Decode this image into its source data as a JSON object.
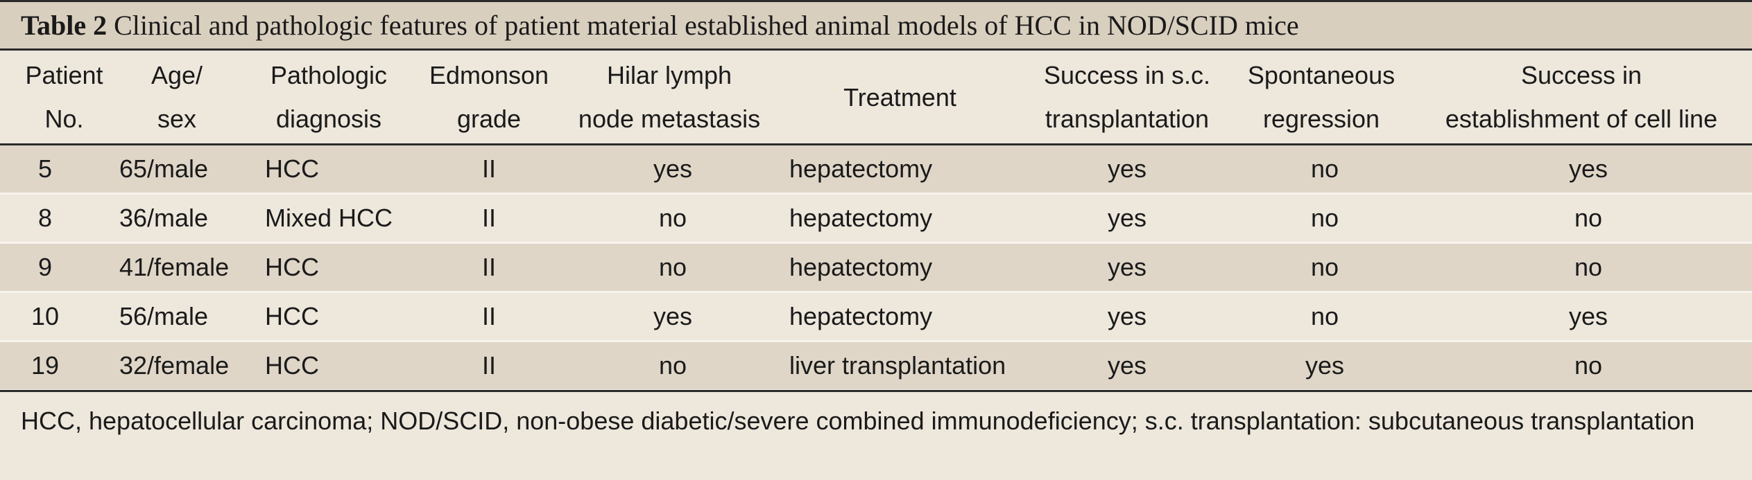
{
  "table": {
    "caption_label": "Table 2",
    "caption_text": " Clinical and pathologic features of patient material established animal models of HCC in NOD/SCID mice",
    "headers": [
      [
        "Patient",
        "No."
      ],
      [
        "Age/",
        "sex"
      ],
      [
        "Pathologic",
        "diagnosis"
      ],
      [
        "Edmonson",
        "grade"
      ],
      [
        "Hilar lymph",
        "node metastasis"
      ],
      [
        "Treatment"
      ],
      [
        "Success in s.c.",
        "transplantation"
      ],
      [
        "Spontaneous",
        "regression"
      ],
      [
        "Success in",
        "establishment of cell line"
      ]
    ],
    "rows": [
      [
        "5",
        "65/male",
        "HCC",
        "II",
        "yes",
        "hepatectomy",
        "yes",
        "no",
        "yes"
      ],
      [
        "8",
        "36/male",
        "Mixed HCC",
        "II",
        "no",
        "hepatectomy",
        "yes",
        "no",
        "no"
      ],
      [
        "9",
        "41/female",
        "HCC",
        "II",
        "no",
        "hepatectomy",
        "yes",
        "no",
        "no"
      ],
      [
        "10",
        "56/male",
        "HCC",
        "II",
        "yes",
        "hepatectomy",
        "yes",
        "no",
        "yes"
      ],
      [
        "19",
        "32/female",
        "HCC",
        "II",
        "no",
        "liver transplantation",
        "yes",
        "yes",
        "no"
      ]
    ],
    "footnote": "HCC, hepatocellular carcinoma; NOD/SCID, non-obese diabetic/severe combined immunodeficiency; s.c. transplantation: subcutaneous transplantation"
  }
}
